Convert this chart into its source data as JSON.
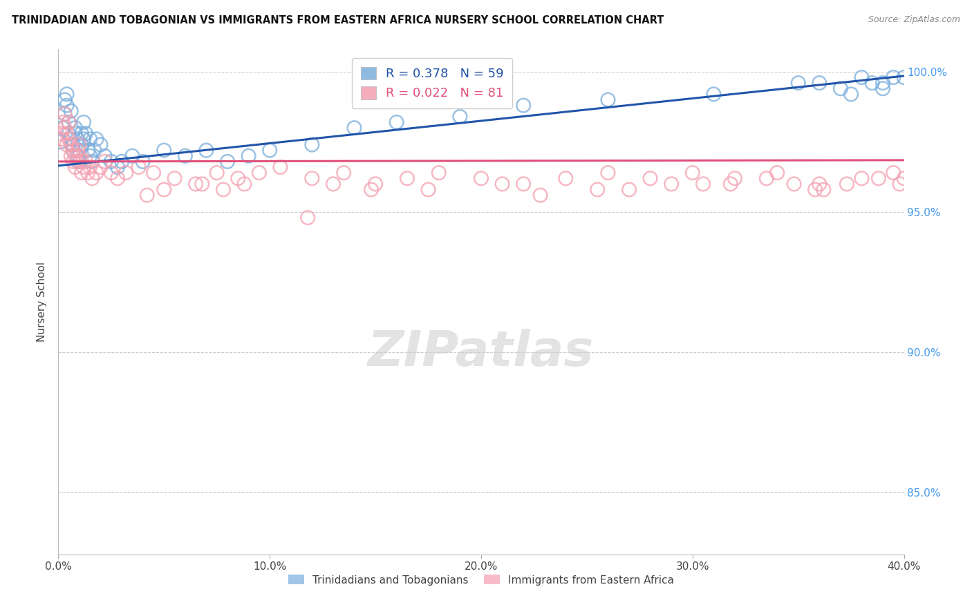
{
  "title": "TRINIDADIAN AND TOBAGONIAN VS IMMIGRANTS FROM EASTERN AFRICA NURSERY SCHOOL CORRELATION CHART",
  "source": "Source: ZipAtlas.com",
  "ylabel": "Nursery School",
  "xlim": [
    0.0,
    0.4
  ],
  "ylim": [
    0.828,
    1.008
  ],
  "yticks": [
    0.85,
    0.9,
    0.95,
    1.0
  ],
  "ytick_labels": [
    "85.0%",
    "90.0%",
    "95.0%",
    "100.0%"
  ],
  "xticks": [
    0.0,
    0.1,
    0.2,
    0.3,
    0.4
  ],
  "xtick_labels": [
    "0.0%",
    "10.0%",
    "20.0%",
    "30.0%",
    "40.0%"
  ],
  "blue_R": 0.378,
  "blue_N": 59,
  "pink_R": 0.022,
  "pink_N": 81,
  "legend_label_blue": "Trinidadians and Tobagonians",
  "legend_label_pink": "Immigrants from Eastern Africa",
  "blue_color": "#7aaedd",
  "pink_color": "#f4a0b0",
  "blue_line_color": "#2255aa",
  "pink_line_color": "#e0507a",
  "blue_scatter_x": [
    0.001,
    0.002,
    0.003,
    0.003,
    0.004,
    0.004,
    0.005,
    0.005,
    0.006,
    0.006,
    0.007,
    0.007,
    0.008,
    0.008,
    0.009,
    0.009,
    0.01,
    0.01,
    0.011,
    0.011,
    0.012,
    0.012,
    0.013,
    0.014,
    0.015,
    0.015,
    0.016,
    0.017,
    0.018,
    0.02,
    0.022,
    0.025,
    0.028,
    0.03,
    0.035,
    0.04,
    0.05,
    0.06,
    0.07,
    0.08,
    0.09,
    0.1,
    0.12,
    0.14,
    0.16,
    0.19,
    0.22,
    0.26,
    0.31,
    0.35,
    0.38,
    0.39,
    0.395,
    0.4,
    0.39,
    0.385,
    0.375,
    0.37,
    0.36
  ],
  "blue_scatter_y": [
    0.975,
    0.98,
    0.985,
    0.99,
    0.992,
    0.988,
    0.978,
    0.982,
    0.986,
    0.976,
    0.974,
    0.972,
    0.98,
    0.978,
    0.976,
    0.97,
    0.972,
    0.968,
    0.974,
    0.978,
    0.976,
    0.982,
    0.978,
    0.972,
    0.97,
    0.976,
    0.968,
    0.972,
    0.976,
    0.974,
    0.97,
    0.968,
    0.966,
    0.968,
    0.97,
    0.968,
    0.972,
    0.97,
    0.972,
    0.968,
    0.97,
    0.972,
    0.974,
    0.98,
    0.982,
    0.984,
    0.988,
    0.99,
    0.992,
    0.996,
    0.998,
    0.996,
    0.998,
    0.998,
    0.994,
    0.996,
    0.992,
    0.994,
    0.996
  ],
  "pink_scatter_x": [
    0.001,
    0.002,
    0.002,
    0.003,
    0.003,
    0.004,
    0.004,
    0.005,
    0.005,
    0.006,
    0.006,
    0.007,
    0.007,
    0.008,
    0.008,
    0.009,
    0.009,
    0.01,
    0.01,
    0.011,
    0.011,
    0.012,
    0.013,
    0.014,
    0.015,
    0.016,
    0.018,
    0.02,
    0.022,
    0.025,
    0.028,
    0.032,
    0.038,
    0.045,
    0.055,
    0.065,
    0.075,
    0.085,
    0.095,
    0.105,
    0.12,
    0.135,
    0.15,
    0.165,
    0.18,
    0.2,
    0.22,
    0.24,
    0.26,
    0.28,
    0.3,
    0.32,
    0.34,
    0.36,
    0.38,
    0.395,
    0.13,
    0.175,
    0.21,
    0.255,
    0.29,
    0.335,
    0.348,
    0.362,
    0.373,
    0.388,
    0.05,
    0.068,
    0.078,
    0.088,
    0.27,
    0.305,
    0.4,
    0.042,
    0.148,
    0.228,
    0.318,
    0.358,
    0.398,
    0.408,
    0.118
  ],
  "pink_scatter_y": [
    0.978,
    0.982,
    0.976,
    0.985,
    0.98,
    0.974,
    0.978,
    0.982,
    0.976,
    0.974,
    0.97,
    0.972,
    0.968,
    0.966,
    0.97,
    0.972,
    0.968,
    0.974,
    0.97,
    0.968,
    0.964,
    0.966,
    0.968,
    0.964,
    0.966,
    0.962,
    0.964,
    0.966,
    0.968,
    0.964,
    0.962,
    0.964,
    0.966,
    0.964,
    0.962,
    0.96,
    0.964,
    0.962,
    0.964,
    0.966,
    0.962,
    0.964,
    0.96,
    0.962,
    0.964,
    0.962,
    0.96,
    0.962,
    0.964,
    0.962,
    0.964,
    0.962,
    0.964,
    0.96,
    0.962,
    0.964,
    0.96,
    0.958,
    0.96,
    0.958,
    0.96,
    0.962,
    0.96,
    0.958,
    0.96,
    0.962,
    0.958,
    0.96,
    0.958,
    0.96,
    0.958,
    0.96,
    0.962,
    0.956,
    0.958,
    0.956,
    0.96,
    0.958,
    0.96,
    0.958,
    0.948
  ],
  "blue_line_x0": 0.0,
  "blue_line_y0": 0.9665,
  "blue_line_x1": 0.4,
  "blue_line_y1": 0.9985,
  "pink_line_x0": 0.0,
  "pink_line_y0": 0.968,
  "pink_line_x1": 0.4,
  "pink_line_y1": 0.9685
}
